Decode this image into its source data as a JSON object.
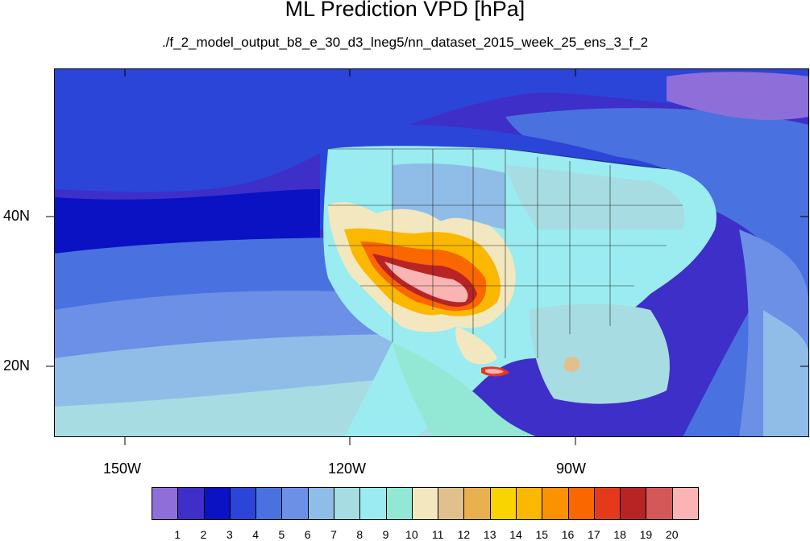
{
  "title": "ML Prediction VPD [hPa]",
  "subtitle": "./f_2_model_output_b8_e_30_d3_lneg5/nn_dataset_2015_week_25_ens_3_f_2",
  "axes": {
    "lat_labels": [
      "40N",
      "20N"
    ],
    "lon_labels": [
      "150W",
      "120W",
      "90W"
    ]
  },
  "colorbar": {
    "labels": [
      "1",
      "2",
      "3",
      "4",
      "5",
      "6",
      "7",
      "8",
      "9",
      "10",
      "11",
      "12",
      "13",
      "14",
      "15",
      "16",
      "17",
      "18",
      "19",
      "20"
    ],
    "colors": [
      "#8e6fd9",
      "#3d2fc8",
      "#0a12c4",
      "#2a45d8",
      "#4a71e0",
      "#6b90e6",
      "#90bde8",
      "#a7dde2",
      "#9aecf0",
      "#92e8d4",
      "#f2e7bf",
      "#e0c18e",
      "#e8b04f",
      "#f9d400",
      "#fbb800",
      "#fb9200",
      "#fa6600",
      "#e43a1b",
      "#b82424",
      "#d45858",
      "#fbb4b4"
    ]
  }
}
